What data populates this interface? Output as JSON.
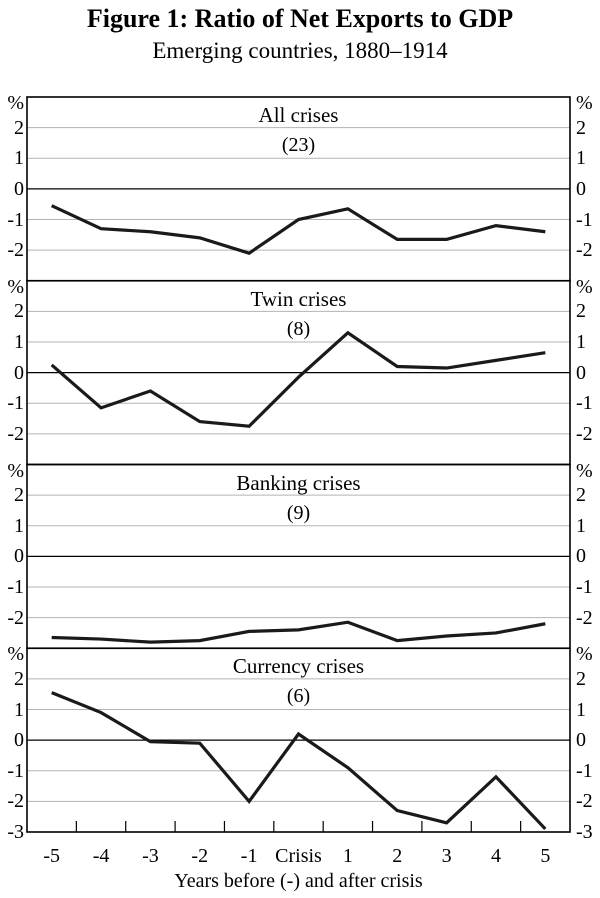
{
  "figure": {
    "title": "Figure 1: Ratio of Net Exports to GDP",
    "subtitle": "Emerging countries, 1880–1914"
  },
  "axes": {
    "x_categories": [
      "-5",
      "-4",
      "-3",
      "-2",
      "-1",
      "Crisis",
      "1",
      "2",
      "3",
      "4",
      "5"
    ],
    "x_title": "Years before (-) and after crisis",
    "y_unit_label": "%",
    "y_tick_labels": [
      2,
      1,
      0,
      -1,
      -2
    ],
    "y_bottom_label": -3,
    "y_range": [
      -3,
      3
    ],
    "grid": true
  },
  "colors": {
    "series_line": "#1a1a1a",
    "gridline": "#b3b3b3",
    "zero_line": "#000000",
    "panel_border": "#000000",
    "text": "#000000"
  },
  "chart_data": [
    {
      "type": "line",
      "title": "All crises",
      "count_label": "(23)",
      "categories": [
        "-5",
        "-4",
        "-3",
        "-2",
        "-1",
        "Crisis",
        "1",
        "2",
        "3",
        "4",
        "5"
      ],
      "values": [
        -0.55,
        -1.3,
        -1.4,
        -1.6,
        -2.1,
        -1.0,
        -0.65,
        -1.65,
        -1.65,
        -1.2,
        -1.4
      ],
      "ylim": [
        -3,
        3
      ]
    },
    {
      "type": "line",
      "title": "Twin crises",
      "count_label": "(8)",
      "categories": [
        "-5",
        "-4",
        "-3",
        "-2",
        "-1",
        "Crisis",
        "1",
        "2",
        "3",
        "4",
        "5"
      ],
      "values": [
        0.25,
        -1.15,
        -0.6,
        -1.6,
        -1.75,
        -0.15,
        1.3,
        0.2,
        0.15,
        0.4,
        0.65
      ],
      "ylim": [
        -3,
        3
      ]
    },
    {
      "type": "line",
      "title": "Banking crises",
      "count_label": "(9)",
      "categories": [
        "-5",
        "-4",
        "-3",
        "-2",
        "-1",
        "Crisis",
        "1",
        "2",
        "3",
        "4",
        "5"
      ],
      "values": [
        -2.65,
        -2.7,
        -2.8,
        -2.75,
        -2.45,
        -2.4,
        -2.15,
        -2.75,
        -2.6,
        -2.5,
        -2.2
      ],
      "ylim": [
        -3,
        3
      ]
    },
    {
      "type": "line",
      "title": "Currency crises",
      "count_label": "(6)",
      "categories": [
        "-5",
        "-4",
        "-3",
        "-2",
        "-1",
        "Crisis",
        "1",
        "2",
        "3",
        "4",
        "5"
      ],
      "values": [
        1.55,
        0.9,
        -0.05,
        -0.1,
        -2.0,
        0.2,
        -0.9,
        -2.3,
        -2.7,
        -1.2,
        -2.9
      ],
      "ylim": [
        -3,
        3
      ]
    }
  ]
}
